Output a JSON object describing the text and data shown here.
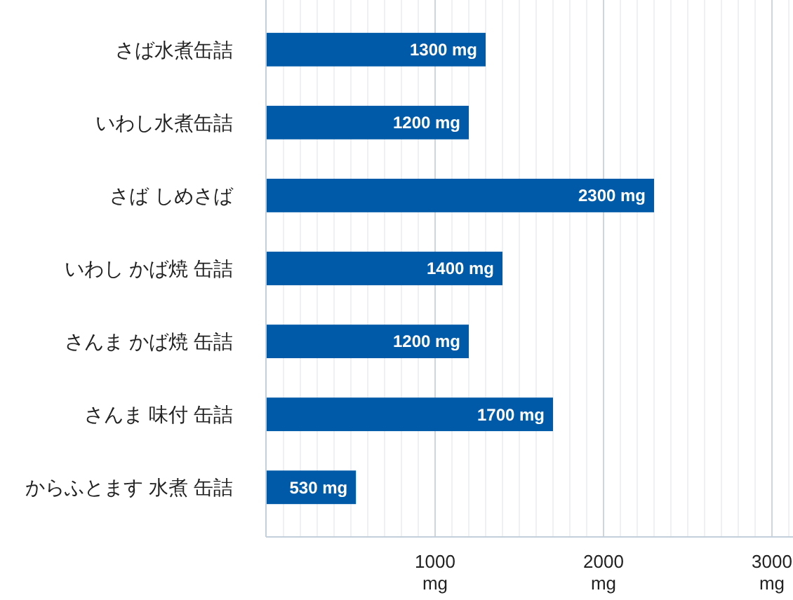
{
  "chart_data": {
    "type": "bar",
    "orientation": "horizontal",
    "categories": [
      "さば水煮缶詰",
      "いわし水煮缶詰",
      "さば しめさば",
      "いわし かば焼 缶詰",
      "さんま かば焼 缶詰",
      "さんま 味付 缶詰",
      "からふとます 水煮 缶詰"
    ],
    "values": [
      1300,
      1200,
      2300,
      1400,
      1200,
      1700,
      530
    ],
    "value_labels": [
      "1300 mg",
      "1200 mg",
      "2300 mg",
      "1400 mg",
      "1200 mg",
      "1700 mg",
      "530 mg"
    ],
    "color": "#005aa8",
    "xlim": [
      0,
      3125
    ],
    "xticks": [
      {
        "value": 100,
        "label": null
      },
      {
        "value": 200,
        "label": null
      },
      {
        "value": 300,
        "label": null
      },
      {
        "value": 400,
        "label": null
      },
      {
        "value": 500,
        "label": null
      },
      {
        "value": 600,
        "label": null
      },
      {
        "value": 700,
        "label": null
      },
      {
        "value": 800,
        "label": null
      },
      {
        "value": 900,
        "label": null
      },
      {
        "value": 1000,
        "label": "1000 mg"
      },
      {
        "value": 1100,
        "label": null
      },
      {
        "value": 1200,
        "label": null
      },
      {
        "value": 1300,
        "label": null
      },
      {
        "value": 1400,
        "label": null
      },
      {
        "value": 1500,
        "label": null
      },
      {
        "value": 1600,
        "label": null
      },
      {
        "value": 1700,
        "label": null
      },
      {
        "value": 1800,
        "label": null
      },
      {
        "value": 1900,
        "label": null
      },
      {
        "value": 2000,
        "label": "2000 mg"
      },
      {
        "value": 2100,
        "label": null
      },
      {
        "value": 2200,
        "label": null
      },
      {
        "value": 2300,
        "label": null
      },
      {
        "value": 2400,
        "label": null
      },
      {
        "value": 2500,
        "label": null
      },
      {
        "value": 2600,
        "label": null
      },
      {
        "value": 2700,
        "label": null
      },
      {
        "value": 2800,
        "label": null
      },
      {
        "value": 2900,
        "label": null
      },
      {
        "value": 3000,
        "label": "3000 mg"
      },
      {
        "value": 3100,
        "label": null
      }
    ],
    "grid": "x"
  }
}
